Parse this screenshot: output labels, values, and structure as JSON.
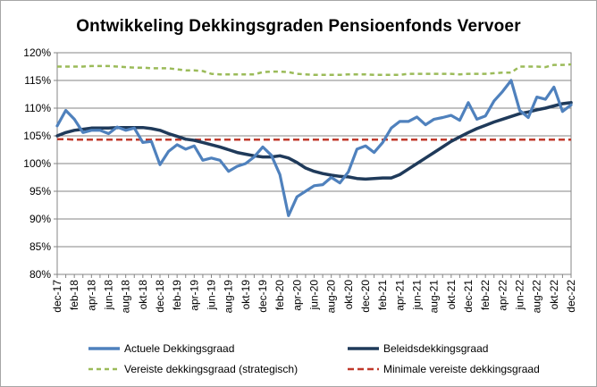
{
  "chart_data": {
    "type": "line",
    "title": "Ontwikkeling Dekkingsgraden Pensioenfonds Vervoer",
    "xlabel": "",
    "ylabel": "",
    "ylim": [
      0.8,
      1.2
    ],
    "yticks": [
      "80%",
      "85%",
      "90%",
      "95%",
      "100%",
      "105%",
      "110%",
      "115%",
      "120%"
    ],
    "x_labels": [
      "dec-17",
      "feb-18",
      "apr-18",
      "jun-18",
      "aug-18",
      "okt-18",
      "dec-18",
      "feb-19",
      "apr-19",
      "jun-19",
      "aug-19",
      "okt-19",
      "dec-19",
      "feb-20",
      "apr-20",
      "jun-20",
      "aug-20",
      "okt-20",
      "dec-20",
      "feb-21",
      "apr-21",
      "jun-21",
      "aug-21",
      "okt-21",
      "dec-21",
      "feb-22",
      "apr-22",
      "jun-22",
      "aug-22",
      "okt-22",
      "dec-22"
    ],
    "grid": "horizontal",
    "legend_position": "bottom",
    "series": [
      {
        "name": "Actuele Dekkingsgraad",
        "color": "#4f81bd",
        "style": "solid",
        "values": [
          1.068,
          1.096,
          1.08,
          1.056,
          1.06,
          1.06,
          1.054,
          1.066,
          1.06,
          1.064,
          1.038,
          1.04,
          0.998,
          1.022,
          1.034,
          1.026,
          1.032,
          1.006,
          1.01,
          1.006,
          0.986,
          0.995,
          1.0,
          1.012,
          1.03,
          1.015,
          0.98,
          0.906,
          0.94,
          0.95,
          0.96,
          0.962,
          0.975,
          0.965,
          0.985,
          1.026,
          1.032,
          1.02,
          1.038,
          1.064,
          1.076,
          1.076,
          1.084,
          1.07,
          1.08,
          1.083,
          1.087,
          1.078,
          1.11,
          1.08,
          1.086,
          1.113,
          1.13,
          1.15,
          1.096,
          1.083,
          1.12,
          1.116,
          1.138,
          1.094,
          1.106
        ]
      },
      {
        "name": "Beleidsdekkingsgraad",
        "color": "#1f3a5a",
        "style": "solid",
        "values": [
          1.05,
          1.056,
          1.06,
          1.062,
          1.064,
          1.064,
          1.064,
          1.065,
          1.065,
          1.065,
          1.065,
          1.063,
          1.06,
          1.054,
          1.049,
          1.044,
          1.042,
          1.038,
          1.034,
          1.03,
          1.025,
          1.02,
          1.017,
          1.014,
          1.012,
          1.012,
          1.014,
          1.01,
          1.002,
          0.992,
          0.986,
          0.982,
          0.979,
          0.977,
          0.976,
          0.973,
          0.972,
          0.973,
          0.974,
          0.974,
          0.98,
          0.99,
          1.0,
          1.01,
          1.02,
          1.03,
          1.04,
          1.048,
          1.056,
          1.063,
          1.069,
          1.075,
          1.08,
          1.085,
          1.09,
          1.093,
          1.097,
          1.1,
          1.104,
          1.108,
          1.11
        ]
      },
      {
        "name": "Vereiste dekkingsgraad (strategisch)",
        "color": "#9bbb59",
        "style": "dashed",
        "values": [
          1.175,
          1.175,
          1.175,
          1.175,
          1.176,
          1.176,
          1.176,
          1.175,
          1.174,
          1.173,
          1.173,
          1.172,
          1.172,
          1.172,
          1.17,
          1.168,
          1.168,
          1.167,
          1.162,
          1.161,
          1.161,
          1.161,
          1.161,
          1.161,
          1.165,
          1.166,
          1.166,
          1.165,
          1.162,
          1.161,
          1.16,
          1.16,
          1.16,
          1.16,
          1.161,
          1.161,
          1.161,
          1.16,
          1.16,
          1.16,
          1.16,
          1.162,
          1.162,
          1.162,
          1.162,
          1.162,
          1.162,
          1.161,
          1.162,
          1.162,
          1.162,
          1.163,
          1.164,
          1.164,
          1.175,
          1.175,
          1.175,
          1.174,
          1.178,
          1.178,
          1.179
        ]
      },
      {
        "name": "Minimale vereiste dekkingsgraad",
        "color": "#c0392b",
        "style": "dashed",
        "values": [
          1.044,
          1.044,
          1.043,
          1.043,
          1.043,
          1.043,
          1.043,
          1.043,
          1.043,
          1.043,
          1.043,
          1.043,
          1.043,
          1.043,
          1.043,
          1.043,
          1.043,
          1.043,
          1.043,
          1.043,
          1.043,
          1.043,
          1.043,
          1.043,
          1.043,
          1.043,
          1.043,
          1.043,
          1.043,
          1.043,
          1.043,
          1.043,
          1.043,
          1.043,
          1.043,
          1.043,
          1.043,
          1.043,
          1.043,
          1.043,
          1.043,
          1.043,
          1.043,
          1.043,
          1.043,
          1.043,
          1.043,
          1.043,
          1.043,
          1.043,
          1.043,
          1.043,
          1.043,
          1.043,
          1.043,
          1.043,
          1.043,
          1.043,
          1.043,
          1.043,
          1.043
        ]
      }
    ]
  }
}
